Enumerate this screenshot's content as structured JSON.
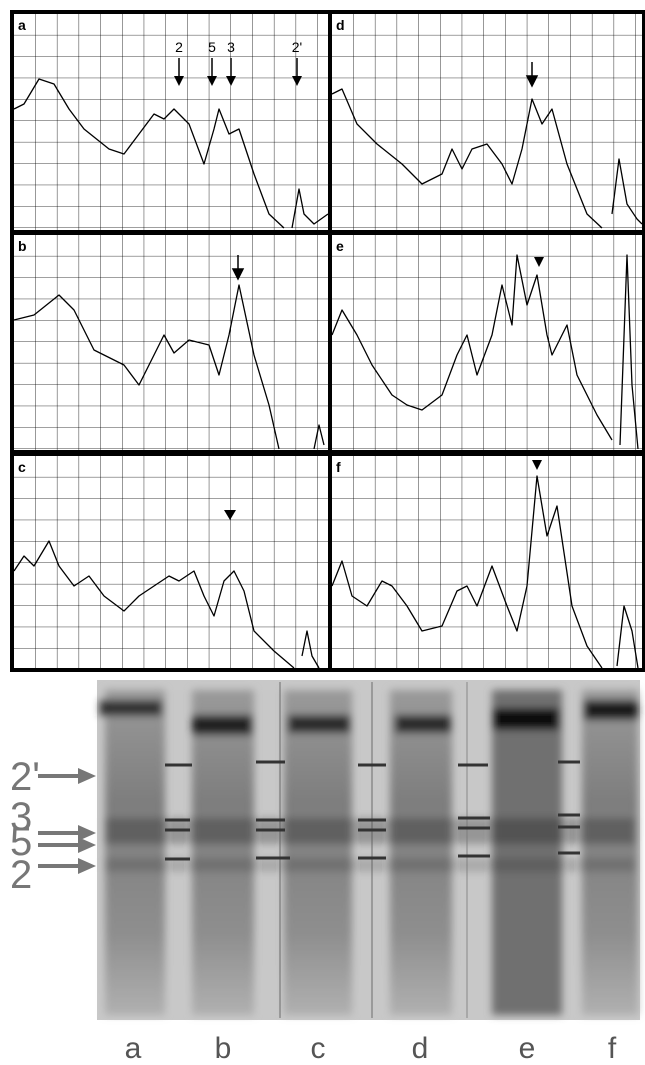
{
  "panels": [
    "a",
    "b",
    "c",
    "d",
    "e",
    "f"
  ],
  "peak_labels": [
    "2",
    "5",
    "3",
    "2'"
  ],
  "gel": {
    "band_labels": [
      "2'",
      "3",
      "5",
      "2"
    ],
    "lanes": [
      "a",
      "b",
      "c",
      "d",
      "e",
      "f"
    ]
  }
}
